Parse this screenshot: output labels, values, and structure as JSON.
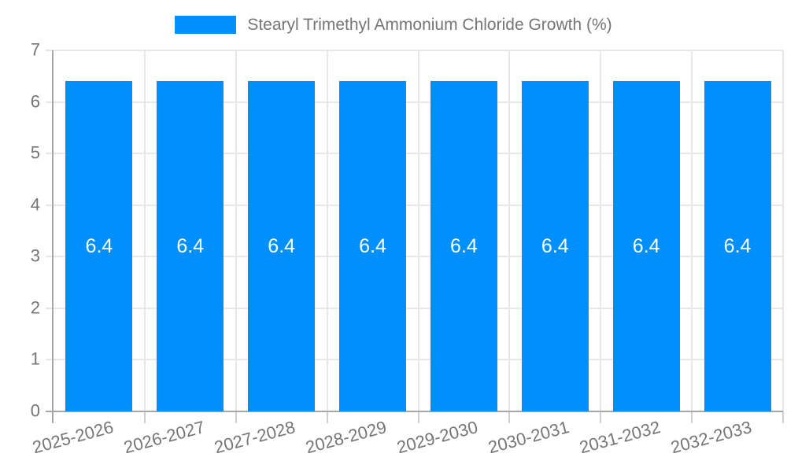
{
  "chart_data": {
    "type": "bar",
    "title": "",
    "categories": [
      "2025-2026",
      "2026-2027",
      "2027-2028",
      "2028-2029",
      "2029-2030",
      "2030-2031",
      "2031-2032",
      "2032-2033"
    ],
    "series": [
      {
        "name": "Stearyl Trimethyl Ammonium Chloride Growth (%)",
        "values": [
          6.4,
          6.4,
          6.4,
          6.4,
          6.4,
          6.4,
          6.4,
          6.4
        ]
      }
    ],
    "xlabel": "",
    "ylabel": "",
    "ylim": [
      0,
      7
    ],
    "yticks": [
      0,
      1,
      2,
      3,
      4,
      5,
      6,
      7
    ],
    "grid": true,
    "legend_position": "top",
    "x_label_rotation_deg": -15,
    "colors": {
      "bar": "#008FFB",
      "bar_value_label": "#FFFFFF",
      "axis_text": "#757575",
      "legend_text": "#757575",
      "gridline": "#E7E7E7",
      "axis_line": "#A6A6A6",
      "tick": "#CFCFCF",
      "background": "#FFFFFF"
    }
  }
}
